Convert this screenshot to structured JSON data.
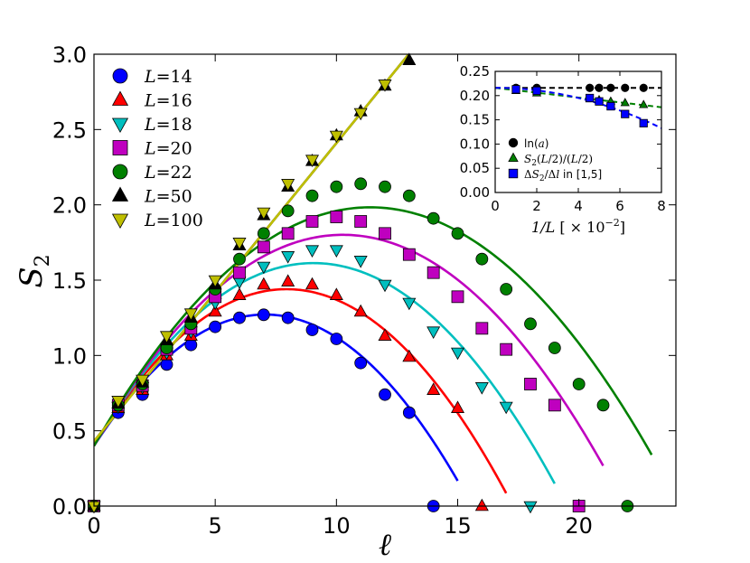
{
  "chart_data": [
    {
      "type": "line",
      "title": "",
      "xlabel": "ℓ",
      "ylabel_base": "S",
      "ylabel_sub": "2",
      "xlim": [
        0,
        24
      ],
      "ylim": [
        0,
        3.0
      ],
      "xticks": [
        0,
        5,
        10,
        15,
        20
      ],
      "xtick_labels": [
        "0",
        "5",
        "10",
        "15",
        "20"
      ],
      "yticks": [
        0.0,
        0.5,
        1.0,
        1.5,
        2.0,
        2.5,
        3.0
      ],
      "ytick_labels": [
        "0.0",
        "0.5",
        "1.0",
        "1.5",
        "2.0",
        "2.5",
        "3.0"
      ],
      "grid": false,
      "legend_position": "top-left",
      "series": [
        {
          "name": "L=14",
          "L_symbol": "L",
          "L_value": "=14",
          "color": "#0000ff",
          "marker": "circle",
          "x": [
            0,
            1,
            2,
            3,
            4,
            5,
            6,
            7,
            8,
            9,
            10,
            11,
            12,
            13,
            14
          ],
          "y": [
            0.0,
            0.62,
            0.74,
            0.94,
            1.07,
            1.19,
            1.25,
            1.27,
            1.25,
            1.17,
            1.11,
            0.95,
            0.74,
            0.62,
            0.0
          ],
          "fit": {
            "a": 0.4,
            "b": 0.247,
            "c": 0.0175,
            "x_end": 15
          }
        },
        {
          "name": "L=16",
          "L_symbol": "L",
          "L_value": "=16",
          "color": "#ff0000",
          "marker": "triangle-up",
          "x": [
            0,
            1,
            2,
            3,
            4,
            5,
            6,
            7,
            8,
            9,
            10,
            11,
            12,
            13,
            14,
            15,
            16
          ],
          "y": [
            0.0,
            0.65,
            0.77,
            1.0,
            1.13,
            1.29,
            1.4,
            1.47,
            1.49,
            1.47,
            1.4,
            1.29,
            1.13,
            0.99,
            0.77,
            0.65,
            0.0
          ],
          "fit": {
            "a": 0.4,
            "b": 0.262,
            "c": 0.0165,
            "x_end": 17
          }
        },
        {
          "name": "L=18",
          "L_symbol": "L",
          "L_value": "=18",
          "color": "#00bfbf",
          "marker": "triangle-down",
          "x": [
            0,
            1,
            2,
            3,
            4,
            5,
            6,
            7,
            8,
            9,
            10,
            11,
            12,
            13,
            14,
            15,
            16,
            17,
            18
          ],
          "y": [
            0.0,
            0.66,
            0.79,
            1.02,
            1.16,
            1.35,
            1.49,
            1.59,
            1.66,
            1.7,
            1.7,
            1.63,
            1.47,
            1.35,
            1.16,
            1.02,
            0.79,
            0.66,
            0.0
          ],
          "fit": {
            "a": 0.4,
            "b": 0.268,
            "c": 0.0148,
            "x_end": 19
          }
        },
        {
          "name": "L=20",
          "L_symbol": "L",
          "L_value": "=20",
          "color": "#bf00bf",
          "marker": "square",
          "x": [
            0,
            1,
            2,
            3,
            4,
            5,
            6,
            7,
            8,
            9,
            10,
            11,
            12,
            13,
            14,
            15,
            16,
            17,
            18,
            19,
            20
          ],
          "y": [
            0.0,
            0.67,
            0.8,
            1.04,
            1.18,
            1.39,
            1.55,
            1.72,
            1.81,
            1.89,
            1.92,
            1.89,
            1.81,
            1.67,
            1.55,
            1.39,
            1.18,
            1.04,
            0.81,
            0.67,
            0.0
          ],
          "fit": {
            "a": 0.4,
            "b": 0.273,
            "c": 0.0133,
            "x_end": 21
          }
        },
        {
          "name": "L=22",
          "L_symbol": "L",
          "L_value": "=22",
          "color": "#008000",
          "marker": "circle",
          "x": [
            0,
            1,
            2,
            3,
            4,
            5,
            6,
            7,
            8,
            9,
            10,
            11,
            12,
            13,
            14,
            15,
            16,
            17,
            18,
            19,
            20,
            21,
            22
          ],
          "y": [
            0.0,
            0.67,
            0.81,
            1.05,
            1.21,
            1.44,
            1.64,
            1.81,
            1.96,
            2.06,
            2.12,
            2.14,
            2.12,
            2.06,
            1.91,
            1.81,
            1.64,
            1.44,
            1.21,
            1.05,
            0.81,
            0.67,
            0.0
          ],
          "fit": {
            "a": 0.4,
            "b": 0.278,
            "c": 0.0122,
            "x_end": 23
          }
        },
        {
          "name": "L=50",
          "L_symbol": "L",
          "L_value": "=50",
          "color": "#000000",
          "marker": "triangle-up",
          "x": [
            0,
            1,
            2,
            3,
            4,
            5,
            6,
            7,
            8,
            9,
            10,
            11,
            12,
            13
          ],
          "y": [
            0.0,
            0.68,
            0.82,
            1.1,
            1.25,
            1.47,
            1.73,
            1.93,
            2.12,
            2.29,
            2.46,
            2.62,
            2.79,
            2.96
          ],
          "fit": {
            "a": 0.43,
            "b": 0.198,
            "c": 0.0,
            "x_end": 13.3
          }
        },
        {
          "name": "L=100",
          "L_symbol": "L",
          "L_value": "=100",
          "color": "#bfbf00",
          "marker": "triangle-down",
          "x": [
            0,
            1,
            2,
            3,
            4,
            5,
            6,
            7,
            8,
            9,
            10,
            11,
            12
          ],
          "y": [
            0.0,
            0.7,
            0.84,
            1.13,
            1.28,
            1.5,
            1.75,
            1.95,
            2.14,
            2.3,
            2.46,
            2.61,
            2.8
          ],
          "fit": {
            "a": 0.43,
            "b": 0.198,
            "c": 0.0,
            "x_end": 13.0
          }
        }
      ]
    },
    {
      "type": "scatter",
      "title": "",
      "xlabel_main": "1/L",
      "xlabel_unit": "[ × 10",
      "xlabel_exp": "−2",
      "xlabel_close": "]",
      "ylabel": "",
      "xlim": [
        0,
        8
      ],
      "ylim": [
        0.0,
        0.25
      ],
      "xticks": [
        0,
        2,
        4,
        6,
        8
      ],
      "xtick_labels": [
        "0",
        "2",
        "4",
        "6",
        "8"
      ],
      "yticks": [
        0.0,
        0.05,
        0.1,
        0.15,
        0.2,
        0.25
      ],
      "ytick_labels": [
        "0.00",
        "0.05",
        "0.10",
        "0.15",
        "0.20",
        "0.25"
      ],
      "grid": false,
      "legend_position": "bottom-left",
      "series": [
        {
          "name": "ln(a)",
          "color": "#000000",
          "marker": "circle",
          "x": [
            1.0,
            2.0,
            4.55,
            5.0,
            5.56,
            6.25,
            7.14
          ],
          "y": [
            0.216,
            0.216,
            0.216,
            0.216,
            0.216,
            0.216,
            0.216
          ],
          "fit": {
            "a": 0.216,
            "b": 0.0,
            "c": 0.0
          }
        },
        {
          "name": "S2(L/2)/(L/2)",
          "color": "#008000",
          "marker": "triangle-up",
          "x": [
            1.0,
            2.0,
            4.55,
            5.0,
            5.56,
            6.25,
            7.14
          ],
          "y": [
            0.21,
            0.205,
            0.193,
            0.191,
            0.188,
            0.185,
            0.181
          ],
          "fit": {
            "a": 0.216,
            "b": 0.005,
            "c": 0.0
          }
        },
        {
          "name": "ΔS2/Δl in [1,5]",
          "color": "#0000ff",
          "marker": "square",
          "x": [
            1.0,
            2.0,
            4.55,
            5.0,
            5.56,
            6.25,
            7.14
          ],
          "y": [
            0.213,
            0.21,
            0.195,
            0.188,
            0.178,
            0.162,
            0.143
          ],
          "fit": {
            "a": 0.216,
            "b": 0.0,
            "c": 0.0013
          }
        }
      ],
      "legend_labels": [
        {
          "parts": [
            "ln(",
            "a",
            ")"
          ]
        },
        {
          "parts": [
            "S",
            "2",
            "(",
            "L",
            "/2)/(",
            "L",
            "/2)"
          ]
        },
        {
          "parts": [
            "Δ",
            "S",
            "2",
            "/Δ",
            "l",
            " in [1,5]"
          ]
        }
      ]
    }
  ]
}
